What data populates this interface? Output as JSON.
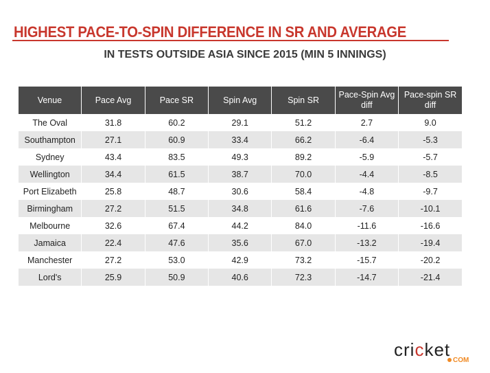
{
  "chart_data": {
    "type": "table",
    "title": "HIGHEST PACE-TO-SPIN DIFFERENCE IN SR AND AVERAGE",
    "subtitle": "IN TESTS OUTSIDE ASIA SINCE 2015 (MIN 5 INNINGS)",
    "columns": [
      "Venue",
      "Pace Avg",
      "Pace SR",
      "Spin Avg",
      "Spin SR",
      "Pace-Spin Avg diff",
      "Pace-spin SR diff"
    ],
    "rows": [
      [
        "The Oval",
        "31.8",
        "60.2",
        "29.1",
        "51.2",
        "2.7",
        "9.0"
      ],
      [
        "Southampton",
        "27.1",
        "60.9",
        "33.4",
        "66.2",
        "-6.4",
        "-5.3"
      ],
      [
        "Sydney",
        "43.4",
        "83.5",
        "49.3",
        "89.2",
        "-5.9",
        "-5.7"
      ],
      [
        "Wellington",
        "34.4",
        "61.5",
        "38.7",
        "70.0",
        "-4.4",
        "-8.5"
      ],
      [
        "Port Elizabeth",
        "25.8",
        "48.7",
        "30.6",
        "58.4",
        "-4.8",
        "-9.7"
      ],
      [
        "Birmingham",
        "27.2",
        "51.5",
        "34.8",
        "61.6",
        "-7.6",
        "-10.1"
      ],
      [
        "Melbourne",
        "32.6",
        "67.4",
        "44.2",
        "84.0",
        "-11.6",
        "-16.6"
      ],
      [
        "Jamaica",
        "22.4",
        "47.6",
        "35.6",
        "67.0",
        "-13.2",
        "-19.4"
      ],
      [
        "Manchester",
        "27.2",
        "53.0",
        "42.9",
        "73.2",
        "-15.7",
        "-20.2"
      ],
      [
        "Lord's",
        "25.9",
        "50.9",
        "40.6",
        "72.3",
        "-14.7",
        "-21.4"
      ]
    ]
  },
  "logo": {
    "main": "cricket",
    "suffix": "COM"
  },
  "colors": {
    "accent": "#c8372d",
    "header_bg": "#4a4a4a",
    "alt_row": "#e6e6e6",
    "logo_orange": "#f08a24"
  }
}
